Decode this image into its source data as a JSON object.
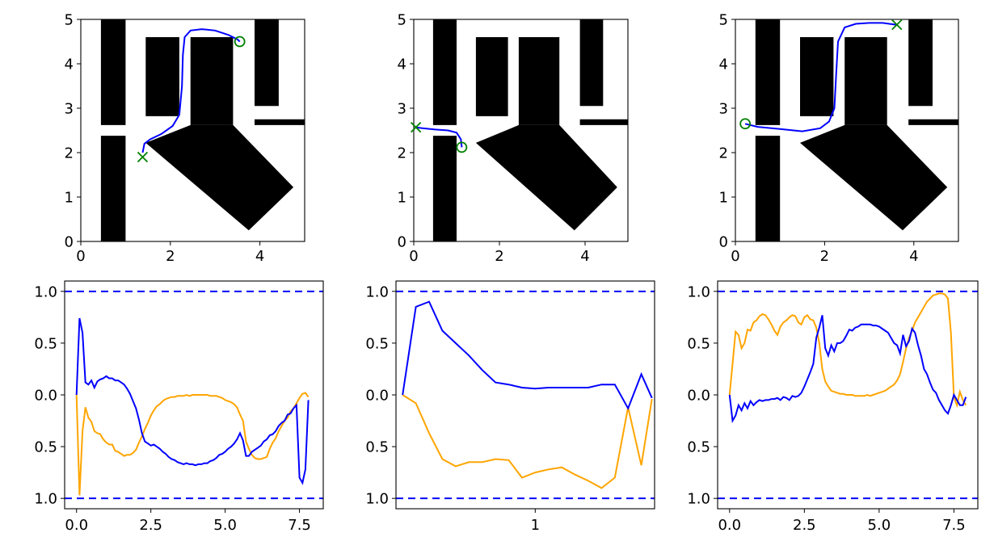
{
  "colors": {
    "path": "#0000ff",
    "marker": "#008000",
    "velocity": "#0000ff",
    "steering": "#ffa500",
    "limit": "#0000ff",
    "obstacle": "#000000"
  },
  "maps": {
    "xlim": [
      0,
      5
    ],
    "ylim": [
      0,
      5
    ],
    "xticks": [
      "0",
      "2",
      "4"
    ],
    "yticks": [
      "0",
      "1",
      "2",
      "3",
      "4",
      "5"
    ],
    "obstacles": [
      [
        [
          0.45,
          5
        ],
        [
          1.0,
          5
        ],
        [
          1.0,
          2.62
        ],
        [
          0.45,
          2.62
        ]
      ],
      [
        [
          0.45,
          2.38
        ],
        [
          1.0,
          2.38
        ],
        [
          1.0,
          0
        ],
        [
          0.45,
          0
        ]
      ],
      [
        [
          1.45,
          4.6
        ],
        [
          2.2,
          4.6
        ],
        [
          2.2,
          2.82
        ],
        [
          1.45,
          2.82
        ]
      ],
      [
        [
          2.45,
          4.6
        ],
        [
          3.4,
          4.6
        ],
        [
          3.4,
          2.62
        ],
        [
          2.45,
          2.62
        ]
      ],
      [
        [
          2.45,
          2.62
        ],
        [
          3.4,
          2.62
        ],
        [
          4.75,
          1.22
        ],
        [
          3.75,
          0.25
        ],
        [
          1.45,
          2.22
        ]
      ],
      [
        [
          3.88,
          5
        ],
        [
          4.42,
          5
        ],
        [
          4.42,
          3.05
        ],
        [
          3.88,
          3.05
        ]
      ],
      [
        [
          3.88,
          2.75
        ],
        [
          5,
          2.75
        ],
        [
          5,
          2.62
        ],
        [
          3.88,
          2.62
        ]
      ]
    ]
  },
  "chart_data": [
    {
      "type": "line",
      "panel": "map-1",
      "xlim": [
        0,
        5
      ],
      "ylim": [
        0,
        5
      ],
      "series": [
        {
          "x": [
            1.38,
            1.42,
            1.55,
            1.8,
            2.05,
            2.2,
            2.26,
            2.28,
            2.32,
            2.45,
            2.7,
            3.0,
            3.3,
            3.5,
            3.55
          ],
          "y": [
            2.0,
            2.2,
            2.3,
            2.42,
            2.6,
            2.85,
            3.5,
            4.2,
            4.6,
            4.75,
            4.78,
            4.75,
            4.65,
            4.55,
            4.5
          ]
        }
      ],
      "start": [
        3.55,
        4.5
      ],
      "goal": [
        1.38,
        1.9
      ]
    },
    {
      "type": "line",
      "panel": "map-2",
      "xlim": [
        0,
        5
      ],
      "ylim": [
        0,
        5
      ],
      "series": [
        {
          "x": [
            1.12,
            1.1,
            1.0,
            0.8,
            0.5,
            0.2,
            0.05
          ],
          "y": [
            2.12,
            2.3,
            2.45,
            2.5,
            2.52,
            2.55,
            2.57
          ]
        }
      ],
      "start": [
        1.12,
        2.12
      ],
      "goal": [
        0.05,
        2.57
      ]
    },
    {
      "type": "line",
      "panel": "map-3",
      "xlim": [
        0,
        5
      ],
      "ylim": [
        0,
        5
      ],
      "series": [
        {
          "x": [
            0.22,
            0.5,
            1.0,
            1.5,
            1.9,
            2.1,
            2.22,
            2.26,
            2.3,
            2.45,
            2.7,
            3.0,
            3.3,
            3.6
          ],
          "y": [
            2.65,
            2.58,
            2.53,
            2.48,
            2.55,
            2.7,
            3.0,
            3.8,
            4.5,
            4.82,
            4.9,
            4.92,
            4.92,
            4.88
          ]
        }
      ],
      "start": [
        0.22,
        2.65
      ],
      "goal": [
        3.62,
        4.88
      ]
    },
    {
      "type": "line",
      "panel": "signals-1",
      "xlim": [
        -0.4,
        8.3
      ],
      "ylim": [
        -1.1,
        1.1
      ],
      "xticks": [
        "0.0",
        "2.5",
        "5.0",
        "7.5"
      ],
      "yticks": [
        "1.0",
        "0.5",
        "0.0",
        "0.5",
        "1.0"
      ],
      "hlines": [
        1.0,
        -1.0
      ],
      "series": [
        {
          "color": "velocity",
          "x": [
            0,
            0.1,
            0.2,
            0.3,
            0.4,
            0.5,
            0.6,
            0.7,
            0.8,
            0.9,
            1.0,
            1.1,
            1.2,
            1.3,
            1.4,
            1.5,
            1.6,
            1.7,
            1.8,
            1.9,
            2.0,
            2.1,
            2.2,
            2.3,
            2.4,
            2.5,
            2.6,
            2.7,
            2.8,
            2.9,
            3.0,
            3.1,
            3.2,
            3.3,
            3.4,
            3.5,
            3.6,
            3.7,
            3.8,
            3.9,
            4.0,
            4.1,
            4.2,
            4.3,
            4.4,
            4.5,
            4.6,
            4.7,
            4.8,
            4.9,
            5.0,
            5.1,
            5.2,
            5.3,
            5.4,
            5.5,
            5.6,
            5.7,
            5.8,
            5.9,
            6.0,
            6.1,
            6.2,
            6.3,
            6.4,
            6.5,
            6.6,
            6.7,
            6.8,
            6.9,
            7.0,
            7.1,
            7.2,
            7.3,
            7.4,
            7.5,
            7.6,
            7.7,
            7.8
          ],
          "y": [
            0.0,
            0.74,
            0.6,
            0.12,
            0.1,
            0.14,
            0.07,
            0.13,
            0.15,
            0.16,
            0.18,
            0.16,
            0.16,
            0.14,
            0.14,
            0.12,
            0.1,
            0.06,
            0.01,
            -0.06,
            -0.13,
            -0.24,
            -0.37,
            -0.45,
            -0.47,
            -0.49,
            -0.48,
            -0.5,
            -0.52,
            -0.55,
            -0.57,
            -0.6,
            -0.62,
            -0.63,
            -0.65,
            -0.66,
            -0.67,
            -0.66,
            -0.67,
            -0.67,
            -0.68,
            -0.67,
            -0.67,
            -0.66,
            -0.66,
            -0.64,
            -0.63,
            -0.61,
            -0.58,
            -0.57,
            -0.55,
            -0.52,
            -0.5,
            -0.47,
            -0.43,
            -0.37,
            -0.44,
            -0.59,
            -0.59,
            -0.55,
            -0.53,
            -0.51,
            -0.49,
            -0.45,
            -0.43,
            -0.39,
            -0.38,
            -0.35,
            -0.3,
            -0.27,
            -0.25,
            -0.19,
            -0.18,
            -0.13,
            -0.1,
            -0.8,
            -0.85,
            -0.72,
            -0.05
          ]
        },
        {
          "color": "steering",
          "x": [
            0,
            0.1,
            0.2,
            0.3,
            0.4,
            0.5,
            0.6,
            0.7,
            0.8,
            0.9,
            1.0,
            1.1,
            1.2,
            1.3,
            1.4,
            1.5,
            1.6,
            1.7,
            1.8,
            1.9,
            2.0,
            2.1,
            2.2,
            2.3,
            2.4,
            2.5,
            2.6,
            2.7,
            2.8,
            2.9,
            3.0,
            3.1,
            3.2,
            3.3,
            3.4,
            3.5,
            3.6,
            3.7,
            3.8,
            3.9,
            4.0,
            4.1,
            4.2,
            4.3,
            4.4,
            4.5,
            4.6,
            4.7,
            4.8,
            4.9,
            5.0,
            5.1,
            5.2,
            5.3,
            5.4,
            5.5,
            5.6,
            5.7,
            5.8,
            5.9,
            6.0,
            6.1,
            6.2,
            6.3,
            6.4,
            6.5,
            6.6,
            6.7,
            6.8,
            6.9,
            7.0,
            7.1,
            7.2,
            7.3,
            7.4,
            7.5,
            7.6,
            7.7,
            7.8
          ],
          "y": [
            0.0,
            -0.97,
            -0.35,
            -0.12,
            -0.22,
            -0.26,
            -0.35,
            -0.37,
            -0.38,
            -0.43,
            -0.46,
            -0.48,
            -0.48,
            -0.54,
            -0.55,
            -0.57,
            -0.59,
            -0.58,
            -0.58,
            -0.56,
            -0.53,
            -0.46,
            -0.4,
            -0.33,
            -0.27,
            -0.2,
            -0.15,
            -0.11,
            -0.09,
            -0.06,
            -0.04,
            -0.03,
            -0.02,
            -0.02,
            -0.01,
            -0.01,
            -0.01,
            0.0,
            -0.01,
            0.0,
            0.0,
            0.0,
            0.0,
            0.0,
            0.0,
            -0.01,
            -0.01,
            -0.01,
            -0.02,
            -0.03,
            -0.05,
            -0.06,
            -0.07,
            -0.09,
            -0.12,
            -0.19,
            -0.25,
            -0.45,
            -0.52,
            -0.58,
            -0.61,
            -0.62,
            -0.62,
            -0.61,
            -0.6,
            -0.52,
            -0.46,
            -0.42,
            -0.35,
            -0.3,
            -0.25,
            -0.22,
            -0.16,
            -0.13,
            -0.08,
            -0.03,
            0.01,
            0.02,
            -0.02
          ]
        }
      ]
    },
    {
      "type": "line",
      "panel": "signals-2",
      "xlim": [
        -0.05,
        1.9
      ],
      "ylim": [
        -1.1,
        1.1
      ],
      "xticks": [
        "1"
      ],
      "yticks": [
        "1.0",
        "0.5",
        "0.0",
        "0.5",
        "1.0"
      ],
      "hlines": [
        1.0,
        -1.0
      ],
      "series": [
        {
          "color": "velocity",
          "x": [
            0,
            0.1,
            0.2,
            0.3,
            0.4,
            0.5,
            0.6,
            0.7,
            0.8,
            0.9,
            1.0,
            1.1,
            1.2,
            1.3,
            1.4,
            1.5,
            1.6,
            1.7,
            1.8,
            1.88
          ],
          "y": [
            0.0,
            0.85,
            0.9,
            0.62,
            0.5,
            0.38,
            0.24,
            0.12,
            0.1,
            0.07,
            0.06,
            0.07,
            0.07,
            0.07,
            0.07,
            0.1,
            0.1,
            -0.13,
            0.2,
            -0.03
          ]
        },
        {
          "color": "steering",
          "x": [
            0,
            0.1,
            0.2,
            0.3,
            0.4,
            0.5,
            0.6,
            0.7,
            0.8,
            0.9,
            1.0,
            1.1,
            1.2,
            1.3,
            1.4,
            1.5,
            1.6,
            1.7,
            1.8,
            1.88
          ],
          "y": [
            0.0,
            -0.08,
            -0.37,
            -0.62,
            -0.69,
            -0.65,
            -0.65,
            -0.62,
            -0.63,
            -0.8,
            -0.75,
            -0.72,
            -0.7,
            -0.77,
            -0.83,
            -0.9,
            -0.8,
            -0.12,
            -0.68,
            -0.04
          ]
        }
      ]
    },
    {
      "type": "line",
      "panel": "signals-3",
      "xlim": [
        -0.4,
        8.3
      ],
      "ylim": [
        -1.1,
        1.1
      ],
      "xticks": [
        "0.0",
        "2.5",
        "5.0",
        "7.5"
      ],
      "yticks": [
        "1.0",
        "0.5",
        "0.0",
        "0.5",
        "1.0"
      ],
      "hlines": [
        1.0,
        -1.0
      ],
      "series": [
        {
          "color": "velocity",
          "x": [
            0,
            0.1,
            0.2,
            0.3,
            0.4,
            0.5,
            0.6,
            0.7,
            0.8,
            0.9,
            1.0,
            1.1,
            1.2,
            1.3,
            1.4,
            1.5,
            1.6,
            1.7,
            1.8,
            1.9,
            2.0,
            2.1,
            2.2,
            2.3,
            2.4,
            2.5,
            2.6,
            2.7,
            2.8,
            2.9,
            3.0,
            3.1,
            3.2,
            3.3,
            3.4,
            3.5,
            3.6,
            3.7,
            3.8,
            3.9,
            4.0,
            4.1,
            4.2,
            4.3,
            4.4,
            4.5,
            4.6,
            4.7,
            4.8,
            4.9,
            5.0,
            5.1,
            5.2,
            5.3,
            5.4,
            5.5,
            5.6,
            5.7,
            5.8,
            5.9,
            6.0,
            6.1,
            6.2,
            6.3,
            6.4,
            6.5,
            6.6,
            6.7,
            6.8,
            6.9,
            7.0,
            7.1,
            7.2,
            7.3,
            7.4,
            7.5,
            7.6,
            7.7,
            7.8,
            7.9
          ],
          "y": [
            0.0,
            -0.25,
            -0.2,
            -0.1,
            -0.15,
            -0.08,
            -0.13,
            -0.06,
            -0.1,
            -0.07,
            -0.05,
            -0.06,
            -0.05,
            -0.05,
            -0.04,
            -0.04,
            -0.03,
            -0.05,
            -0.02,
            -0.03,
            -0.05,
            -0.01,
            -0.02,
            -0.01,
            0.02,
            0.08,
            0.15,
            0.22,
            0.3,
            0.55,
            0.65,
            0.77,
            0.45,
            0.38,
            0.48,
            0.42,
            0.5,
            0.5,
            0.52,
            0.57,
            0.63,
            0.62,
            0.65,
            0.66,
            0.68,
            0.68,
            0.68,
            0.68,
            0.67,
            0.67,
            0.66,
            0.64,
            0.62,
            0.6,
            0.55,
            0.5,
            0.48,
            0.4,
            0.58,
            0.47,
            0.52,
            0.64,
            0.6,
            0.48,
            0.38,
            0.25,
            0.2,
            0.12,
            0.05,
            0.02,
            -0.05,
            -0.1,
            -0.15,
            -0.18,
            -0.1,
            0.0,
            -0.05,
            -0.1,
            -0.1,
            -0.02
          ]
        },
        {
          "color": "steering",
          "x": [
            0,
            0.1,
            0.2,
            0.3,
            0.4,
            0.5,
            0.6,
            0.7,
            0.8,
            0.9,
            1.0,
            1.1,
            1.2,
            1.3,
            1.4,
            1.5,
            1.6,
            1.7,
            1.8,
            1.9,
            2.0,
            2.1,
            2.2,
            2.3,
            2.4,
            2.5,
            2.6,
            2.7,
            2.8,
            2.9,
            3.0,
            3.1,
            3.2,
            3.3,
            3.4,
            3.5,
            3.6,
            3.7,
            3.8,
            3.9,
            4.0,
            4.1,
            4.2,
            4.3,
            4.4,
            4.5,
            4.6,
            4.7,
            4.8,
            4.9,
            5.0,
            5.1,
            5.2,
            5.3,
            5.4,
            5.5,
            5.6,
            5.7,
            5.8,
            5.9,
            6.0,
            6.1,
            6.2,
            6.3,
            6.4,
            6.5,
            6.6,
            6.7,
            6.8,
            6.9,
            7.0,
            7.1,
            7.2,
            7.3,
            7.4,
            7.5,
            7.6,
            7.7,
            7.8,
            7.9
          ],
          "y": [
            0.0,
            0.3,
            0.61,
            0.58,
            0.45,
            0.5,
            0.63,
            0.62,
            0.7,
            0.72,
            0.76,
            0.78,
            0.77,
            0.73,
            0.68,
            0.62,
            0.58,
            0.66,
            0.7,
            0.72,
            0.75,
            0.77,
            0.76,
            0.7,
            0.68,
            0.75,
            0.77,
            0.73,
            0.72,
            0.65,
            0.5,
            0.25,
            0.13,
            0.08,
            0.04,
            0.03,
            0.02,
            0.01,
            0.01,
            0.0,
            0.0,
            0.0,
            -0.01,
            -0.01,
            -0.01,
            -0.01,
            0.0,
            -0.01,
            0.0,
            0.01,
            0.02,
            0.03,
            0.04,
            0.06,
            0.08,
            0.1,
            0.14,
            0.2,
            0.32,
            0.45,
            0.55,
            0.62,
            0.7,
            0.75,
            0.8,
            0.85,
            0.9,
            0.93,
            0.96,
            0.97,
            0.98,
            0.98,
            0.97,
            0.93,
            0.6,
            -0.02,
            -0.1,
            0.03,
            -0.05,
            -0.1
          ]
        }
      ]
    }
  ]
}
